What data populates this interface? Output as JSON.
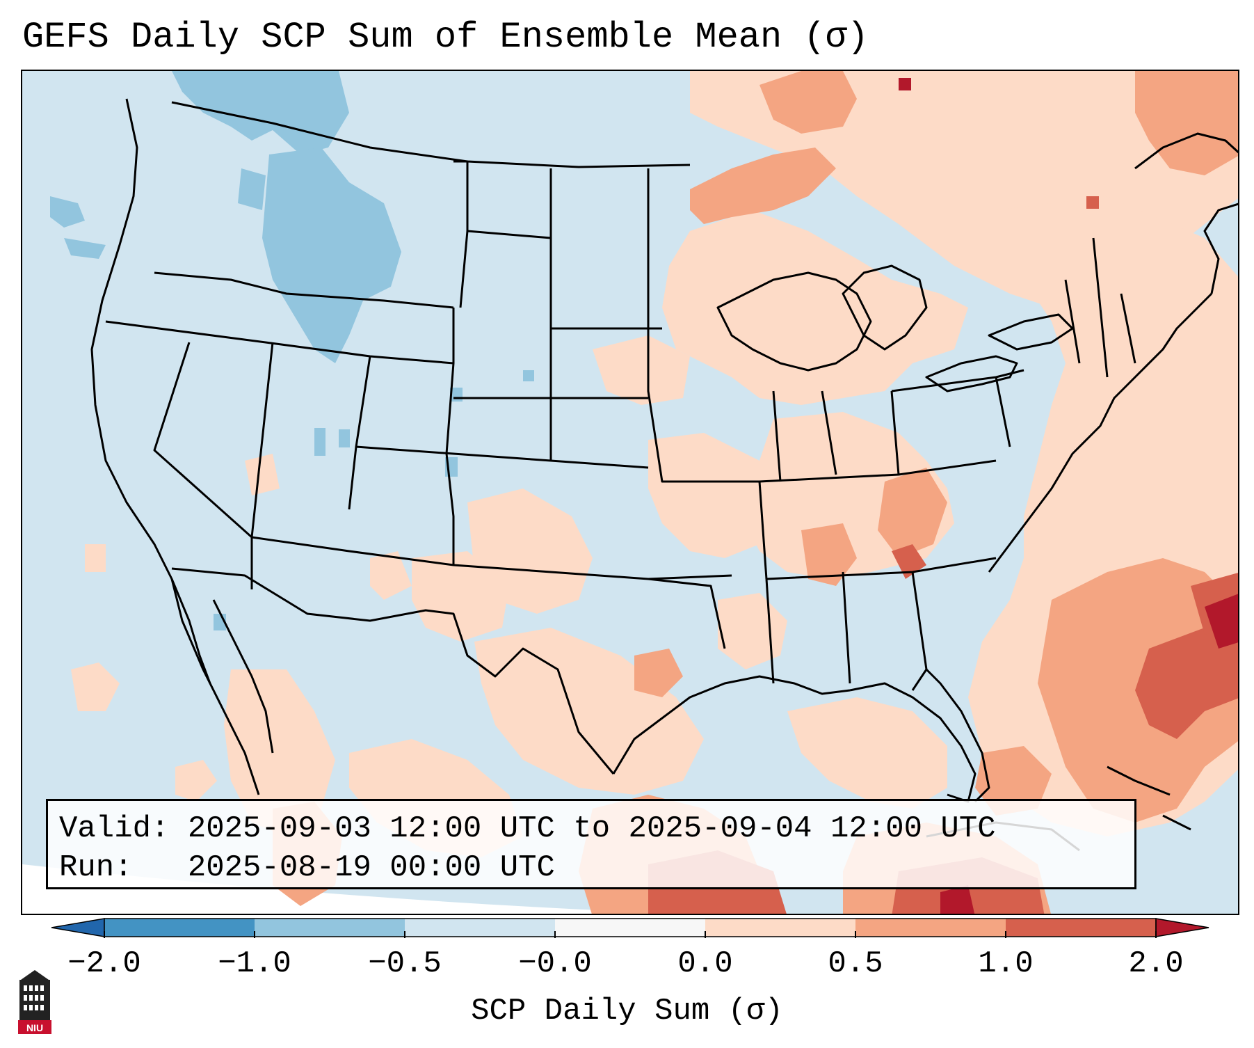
{
  "title": "GEFS Daily SCP Sum of Ensemble Mean (σ)",
  "info": {
    "valid_label": "Valid:",
    "valid_value": "2025-09-03 12:00 UTC to 2025-09-04 12:00 UTC",
    "run_label": "Run:",
    "run_value": "2025-08-19 00:00 UTC"
  },
  "colorbar": {
    "label": "SCP Daily Sum (σ)",
    "ticks": [
      "−2.0",
      "−1.0",
      "−0.5",
      "−0.0",
      "0.0",
      "0.5",
      "1.0",
      "2.0"
    ],
    "colors": {
      "under": "#2166ac",
      "bin_m2_m1": "#4393c3",
      "bin_m1_m05": "#92c5de",
      "bin_m05_m0": "#d1e5f0",
      "bin_zero": "#f7f7f7",
      "bin_0_05": "#fddbc7",
      "bin_05_1": "#f4a582",
      "bin_1_2": "#d6604d",
      "over": "#b2182b"
    }
  },
  "map": {
    "background": "#d1e5f0",
    "border_color": "#000000",
    "region": "Contiguous United States, southern Canada, northern Mexico"
  },
  "logo": {
    "text": "NIU",
    "icon": "university-logo-icon"
  }
}
